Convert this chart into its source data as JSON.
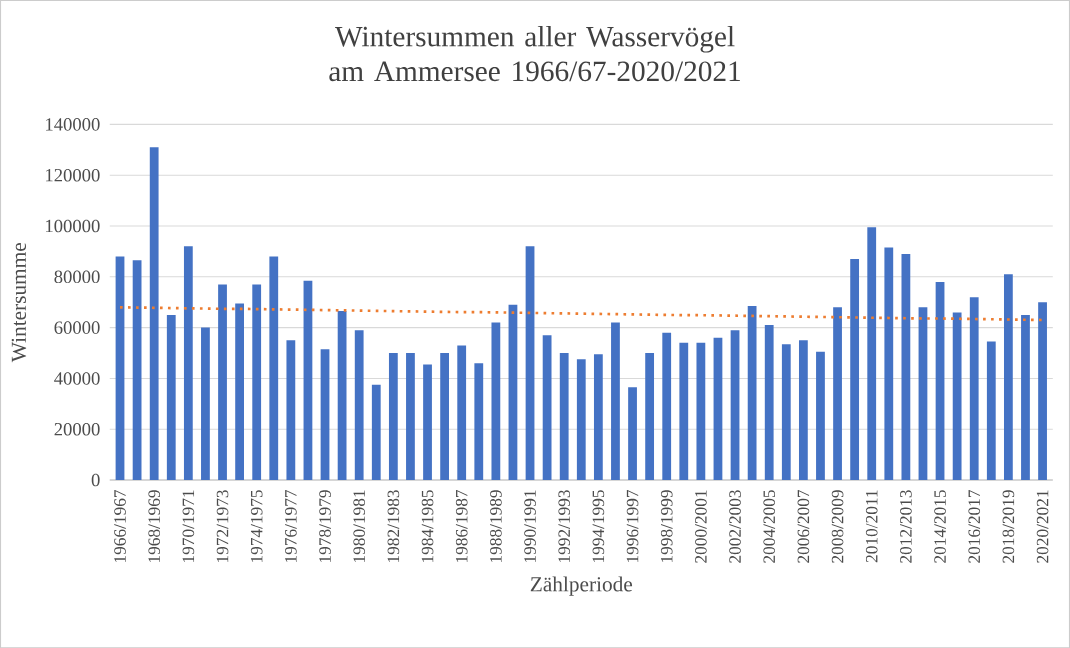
{
  "chart_data": {
    "type": "bar",
    "title": "Wintersummen aller Wasservögel am Ammersee 1966/67-2020/2021",
    "xlabel": "Zählperiode",
    "ylabel": "Wintersumme",
    "categories": [
      "1966/1967",
      null,
      "1968/1969",
      null,
      "1970/1971",
      null,
      "1972/1973",
      null,
      "1974/1975",
      null,
      "1976/1977",
      null,
      "1978/1979",
      null,
      "1980/1981",
      null,
      "1982/1983",
      null,
      "1984/1985",
      null,
      "1986/1987",
      null,
      "1988/1989",
      null,
      "1990/1991",
      null,
      "1992/1993",
      null,
      "1994/1995",
      null,
      "1996/1997",
      null,
      "1998/1999",
      null,
      "2000/2001",
      null,
      "2002/2003",
      null,
      "2004/2005",
      null,
      "2006/2007",
      null,
      "2008/2009",
      null,
      "2010/2011",
      null,
      "2012/2013",
      null,
      "2014/2015",
      null,
      "2016/2017",
      null,
      "2018/2019",
      null,
      "2020/2021"
    ],
    "series": [
      {
        "color": "#4472c4",
        "values": [
          88000,
          86500,
          131000,
          65000,
          92000,
          60000,
          77000,
          69500,
          77000,
          88000,
          55000,
          78500,
          51500,
          66500,
          59000,
          37500,
          50000,
          50000,
          45500,
          50000,
          53000,
          46000,
          62000,
          69000,
          92000,
          57000,
          50000,
          47500,
          49500,
          62000,
          36500,
          50000,
          58000,
          54000,
          54000,
          56000,
          59000,
          68500,
          61000,
          53500,
          55000,
          50500,
          68000,
          87000,
          99500,
          91500,
          89000,
          68000,
          78000,
          66000,
          72000,
          54500,
          81000,
          65000,
          70000
        ]
      },
      {
        "type": "line",
        "color": "#ed7d31",
        "line_style": "dotted",
        "values": [
          68000,
          67900,
          67800,
          67700,
          67600,
          67500,
          67400,
          67400,
          67300,
          67200,
          67100,
          67000,
          66900,
          66800,
          66700,
          66600,
          66500,
          66400,
          66300,
          66200,
          66100,
          66100,
          66000,
          65900,
          65800,
          65700,
          65600,
          65500,
          65400,
          65300,
          65200,
          65100,
          65000,
          64900,
          64900,
          64800,
          64700,
          64600,
          64500,
          64400,
          64300,
          64200,
          64100,
          64000,
          63900,
          63800,
          63700,
          63600,
          63600,
          63500,
          63400,
          63300,
          63200,
          63100,
          63000
        ]
      }
    ],
    "ylim": [
      0,
      140000
    ],
    "yticks": [
      0,
      20000,
      40000,
      60000,
      80000,
      100000,
      120000,
      140000
    ],
    "grid": "y"
  }
}
